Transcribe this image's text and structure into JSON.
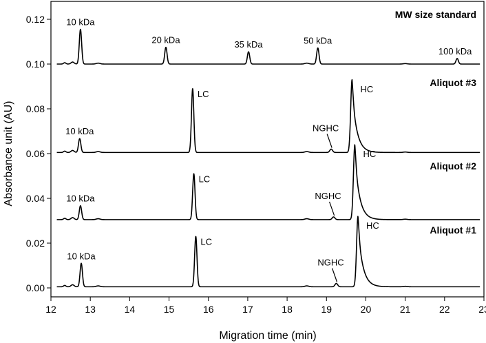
{
  "chart_data": {
    "type": "line",
    "xlabel": "Migration time (min)",
    "ylabel": "Absorbance unit (AU)",
    "xlim": [
      12,
      23
    ],
    "ylim": [
      -0.004,
      0.128
    ],
    "x_ticks": [
      12,
      13,
      14,
      15,
      16,
      17,
      18,
      19,
      20,
      21,
      22,
      23
    ],
    "y_ticks": [
      0.0,
      0.02,
      0.04,
      0.06,
      0.08,
      0.1,
      0.12
    ],
    "y_tick_labels": [
      "0.00",
      "0.02",
      "0.04",
      "0.06",
      "0.08",
      "0.10",
      "0.12"
    ],
    "grid": false,
    "series": [
      {
        "name": "MW size standard",
        "baseline": 0.1,
        "peaks": [
          {
            "x": 12.75,
            "height": 0.0155,
            "label": "10 kDa"
          },
          {
            "x": 14.92,
            "height": 0.0075,
            "label": "20 kDa"
          },
          {
            "x": 17.02,
            "height": 0.0055,
            "label": "35 kDa"
          },
          {
            "x": 18.78,
            "height": 0.0072,
            "label": "50 kDa"
          },
          {
            "x": 22.32,
            "height": 0.0025,
            "label": "100 kDa"
          }
        ]
      },
      {
        "name": "Aliquot #3",
        "baseline": 0.0605,
        "peaks": [
          {
            "x": 12.73,
            "height": 0.0062,
            "label": "10 kDa"
          },
          {
            "x": 15.6,
            "height": 0.0285,
            "label": "LC"
          },
          {
            "x": 19.12,
            "height": 0.0015,
            "label": "NGHC"
          },
          {
            "x": 19.65,
            "height": 0.0325,
            "label": "HC"
          }
        ]
      },
      {
        "name": "Aliquot #2",
        "baseline": 0.0305,
        "peaks": [
          {
            "x": 12.75,
            "height": 0.0062,
            "label": "10 kDa"
          },
          {
            "x": 15.63,
            "height": 0.0205,
            "label": "LC"
          },
          {
            "x": 19.18,
            "height": 0.0012,
            "label": "NGHC"
          },
          {
            "x": 19.72,
            "height": 0.0335,
            "label": "HC"
          }
        ]
      },
      {
        "name": "Aliquot #1",
        "baseline": 0.0005,
        "peaks": [
          {
            "x": 12.77,
            "height": 0.0105,
            "label": "10 kDa"
          },
          {
            "x": 15.68,
            "height": 0.0225,
            "label": "LC"
          },
          {
            "x": 19.25,
            "height": 0.0015,
            "label": "NGHC"
          },
          {
            "x": 19.8,
            "height": 0.0315,
            "label": "HC"
          }
        ]
      }
    ]
  }
}
